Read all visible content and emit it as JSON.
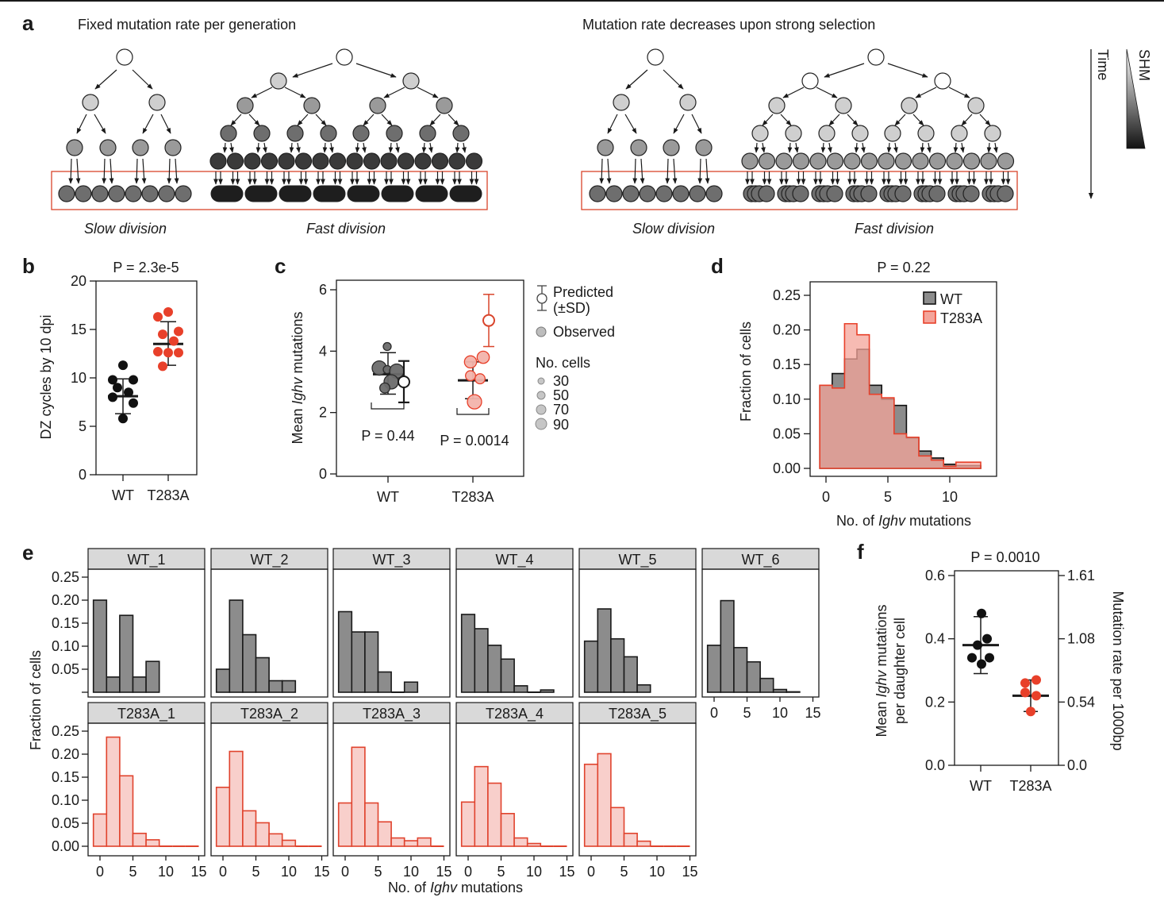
{
  "page": {
    "top_rule": true
  },
  "panel_a": {
    "label": "a",
    "left_title": "Fixed mutation rate per generation",
    "right_title": "Mutation rate decreases upon strong selection",
    "slow_label": "Slow division",
    "fast_label": "Fast division",
    "time_label": "Time",
    "shm_label": "SHM",
    "box_color": "#d9442b",
    "shades": {
      "white": "#ffffff",
      "light": "#cfcfcf",
      "mid": "#9a9a9a",
      "dark": "#6e6e6e",
      "darker": "#3a3a3a",
      "black": "#1e1e1e"
    }
  },
  "chart_data": [
    {
      "id": "b",
      "label": "b",
      "type": "scatter",
      "title": "P = 2.3e-5",
      "ylabel": "DZ cycles by 10 dpi",
      "xlabel": "",
      "categories": [
        "WT",
        "T283A"
      ],
      "ylim": [
        0,
        20
      ],
      "yticks": [
        0,
        5,
        10,
        15,
        20
      ],
      "grid": false,
      "series": [
        {
          "name": "WT",
          "color": "#111111",
          "values": [
            11.3,
            9.8,
            9.8,
            9.0,
            8.5,
            8.0,
            7.4,
            5.8
          ],
          "mean": 8.1,
          "sd_low": 6.3,
          "sd_high": 9.9
        },
        {
          "name": "T283A",
          "color": "#e8402a",
          "values": [
            16.8,
            16.3,
            14.8,
            14.5,
            13.8,
            12.7,
            12.6,
            12.6,
            11.2
          ],
          "mean": 13.5,
          "sd_low": 11.3,
          "sd_high": 15.8
        }
      ]
    },
    {
      "id": "c",
      "label": "c",
      "type": "scatter",
      "title": "",
      "ylabel_pre": "Mean ",
      "ylabel_ital": "Ighv",
      "ylabel_post": " mutations",
      "categories": [
        "WT",
        "T283A"
      ],
      "ylim": [
        0,
        6
      ],
      "yticks": [
        0,
        2,
        4,
        6
      ],
      "grid": false,
      "observed": [
        {
          "name": "WT",
          "fill": "#6b6b6b",
          "stroke": "#2a2a2a",
          "points": [
            {
              "y": 4.15,
              "cells": 30
            },
            {
              "y": 3.45,
              "cells": 90
            },
            {
              "y": 3.4,
              "cells": 30
            },
            {
              "y": 3.35,
              "cells": 90
            },
            {
              "y": 3.0,
              "cells": 90
            },
            {
              "y": 2.8,
              "cells": 50
            }
          ],
          "mean": 3.25,
          "sd_low": 2.6,
          "sd_high": 3.95
        },
        {
          "name": "T283A",
          "fill": "#f2b3ab",
          "stroke": "#e8402a",
          "points": [
            {
              "y": 3.8,
              "cells": 70
            },
            {
              "y": 3.65,
              "cells": 70
            },
            {
              "y": 3.2,
              "cells": 50
            },
            {
              "y": 3.1,
              "cells": 50
            },
            {
              "y": 2.35,
              "cells": 90
            }
          ],
          "mean": 3.05,
          "sd_low": 2.45,
          "sd_high": 3.65
        }
      ],
      "predicted": [
        {
          "name": "WT",
          "color": "#1a1a1a",
          "mean": 3.0,
          "sd_low": 2.33,
          "sd_high": 3.68
        },
        {
          "name": "T283A",
          "color": "#d9442b",
          "mean": 5.0,
          "sd_low": 4.15,
          "sd_high": 5.85
        }
      ],
      "pvalues": [
        "P = 0.44",
        "P = 0.0014"
      ],
      "legend": {
        "predicted_line1": "Predicted",
        "predicted_line2": "(±SD)",
        "observed": "Observed",
        "cells_title": "No. cells",
        "cells": [
          "30",
          "50",
          "70",
          "90"
        ]
      }
    },
    {
      "id": "d",
      "label": "d",
      "type": "area",
      "title": "P = 0.22",
      "ylabel": "Fraction of cells",
      "xlabel_pre": "No. of ",
      "xlabel_ital": "Ighv",
      "xlabel_post": " mutations",
      "xlim": [
        -1,
        13
      ],
      "ylim": [
        0,
        0.27
      ],
      "xticks": [
        0,
        5,
        10
      ],
      "yticks": [
        "0.00",
        "0.05",
        "0.10",
        "0.15",
        "0.20",
        "0.25"
      ],
      "legend_position": "top-right",
      "bins": [
        0,
        1,
        2,
        3,
        4,
        5,
        6,
        7,
        8,
        9,
        10,
        11,
        12
      ],
      "series": [
        {
          "name": "WT",
          "fill": "#8c8c8c",
          "stroke": "#111111",
          "values": [
            0.12,
            0.137,
            0.158,
            0.172,
            0.12,
            0.1,
            0.091,
            0.044,
            0.025,
            0.015,
            0.006,
            0.004,
            0.004
          ]
        },
        {
          "name": "T283A",
          "fill": "#f4a49a",
          "stroke": "#e8402a",
          "values": [
            0.12,
            0.116,
            0.209,
            0.193,
            0.107,
            0.102,
            0.05,
            0.045,
            0.018,
            0.012,
            0.003,
            0.009,
            0.009
          ]
        }
      ],
      "overlap_fill": "#b5726a"
    },
    {
      "id": "e",
      "label": "e",
      "type": "bar",
      "ylabel": "Fraction of cells",
      "xlabel_pre": "No. of ",
      "xlabel_ital": "Ighv",
      "xlabel_post": " mutations",
      "bin_width": 2,
      "bin_centers": [
        0,
        2,
        4,
        6,
        8,
        10,
        12,
        14
      ],
      "xticks": [
        0,
        5,
        10,
        15
      ],
      "ylim": [
        0,
        0.27
      ],
      "yticks_top": [
        "0.05",
        "0.10",
        "0.15",
        "0.20",
        "0.25"
      ],
      "yticks_bottom": [
        "0.00",
        "0.05",
        "0.10",
        "0.15",
        "0.20",
        "0.25"
      ],
      "wt_style": {
        "fill": "#8c8c8c",
        "stroke": "#1a1a1a"
      },
      "mut_style": {
        "fill": "#f8cfcb",
        "stroke": "#e0432d"
      },
      "facets": [
        {
          "name": "WT_1",
          "group": "WT",
          "values": [
            0.2,
            0.033,
            0.167,
            0.033,
            0.067
          ]
        },
        {
          "name": "WT_2",
          "group": "WT",
          "values": [
            0.05,
            0.2,
            0.125,
            0.075,
            0.025,
            0.025
          ]
        },
        {
          "name": "WT_3",
          "group": "WT",
          "values": [
            0.175,
            0.131,
            0.131,
            0.044,
            0,
            0.022
          ]
        },
        {
          "name": "WT_4",
          "group": "WT",
          "values": [
            0.169,
            0.138,
            0.102,
            0.072,
            0.014,
            0,
            0.005
          ]
        },
        {
          "name": "WT_5",
          "group": "WT",
          "values": [
            0.111,
            0.181,
            0.116,
            0.077,
            0.016
          ]
        },
        {
          "name": "WT_6",
          "group": "WT",
          "values": [
            0.102,
            0.199,
            0.097,
            0.066,
            0.03,
            0.006,
            0.001
          ]
        },
        {
          "name": "T283A_1",
          "group": "T283A",
          "values": [
            0.07,
            0.237,
            0.153,
            0.028,
            0.014,
            0,
            0,
            0
          ]
        },
        {
          "name": "T283A_2",
          "group": "T283A",
          "values": [
            0.128,
            0.206,
            0.077,
            0.051,
            0.027,
            0.013,
            0,
            0
          ]
        },
        {
          "name": "T283A_3",
          "group": "T283A",
          "values": [
            0.094,
            0.215,
            0.094,
            0.053,
            0.018,
            0.012,
            0.018,
            0
          ]
        },
        {
          "name": "T283A_4",
          "group": "T283A",
          "values": [
            0.096,
            0.173,
            0.137,
            0.071,
            0.018,
            0.006,
            0,
            0
          ]
        },
        {
          "name": "T283A_5",
          "group": "T283A",
          "values": [
            0.178,
            0.201,
            0.084,
            0.028,
            0.011,
            0,
            0,
            0
          ]
        }
      ]
    },
    {
      "id": "f",
      "label": "f",
      "type": "scatter",
      "title": "P = 0.0010",
      "ylabel_line1_pre": "Mean ",
      "ylabel_line1_ital": "Ighv",
      "ylabel_line1_post": " mutations",
      "ylabel_line2": "per daughter cell",
      "y2label": "Mutation rate per 1000bp",
      "categories": [
        "WT",
        "T283A"
      ],
      "ylim": [
        0,
        0.6
      ],
      "yticks": [
        "0.0",
        "0.2",
        "0.4",
        "0.6"
      ],
      "y2ticks": [
        "0.0",
        "0.54",
        "1.08",
        "1.61"
      ],
      "series": [
        {
          "name": "WT",
          "color": "#111111",
          "values": [
            0.48,
            0.4,
            0.38,
            0.34,
            0.34,
            0.32
          ],
          "mean": 0.38,
          "sd_low": 0.29,
          "sd_high": 0.47
        },
        {
          "name": "T283A",
          "color": "#e8402a",
          "values": [
            0.27,
            0.26,
            0.23,
            0.22,
            0.17
          ],
          "mean": 0.22,
          "sd_low": 0.17,
          "sd_high": 0.27
        }
      ]
    }
  ]
}
